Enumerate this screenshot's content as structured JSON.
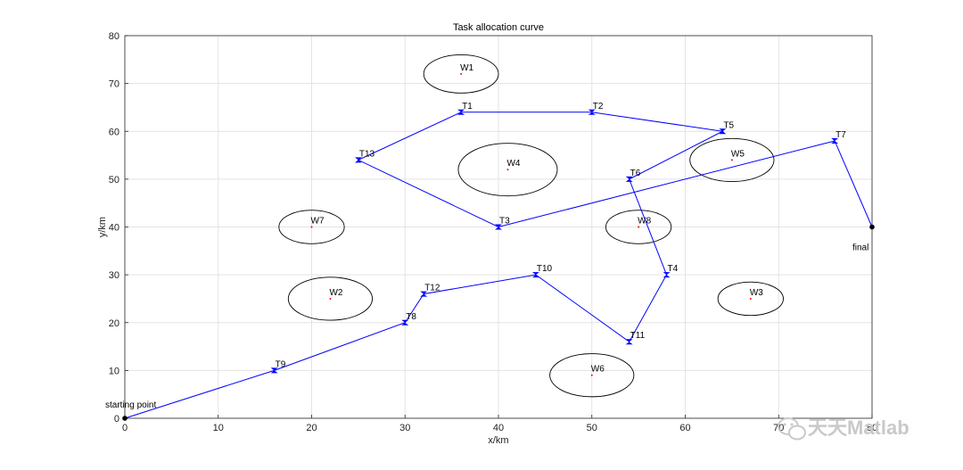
{
  "chart_data": {
    "type": "line",
    "title": "Task allocation curve",
    "xlabel": "x/km",
    "ylabel": "y/km",
    "xlim": [
      0,
      80
    ],
    "ylim": [
      0,
      80
    ],
    "xticks": [
      0,
      10,
      20,
      30,
      40,
      50,
      60,
      70,
      80
    ],
    "yticks": [
      0,
      10,
      20,
      30,
      40,
      50,
      60,
      70,
      80
    ],
    "grid": true,
    "line_color": "#0000ff",
    "path1": [
      {
        "label": "starting point",
        "x": 0,
        "y": 0
      },
      {
        "label": "T9",
        "x": 16,
        "y": 10
      },
      {
        "label": "T8",
        "x": 30,
        "y": 20
      },
      {
        "label": "T12",
        "x": 32,
        "y": 26
      },
      {
        "label": "T10",
        "x": 44,
        "y": 30
      },
      {
        "label": "T11",
        "x": 54,
        "y": 16
      },
      {
        "label": "T4",
        "x": 58,
        "y": 30
      },
      {
        "label": "T6",
        "x": 54,
        "y": 50
      },
      {
        "label": "T5",
        "x": 64,
        "y": 60
      },
      {
        "label": "T2",
        "x": 50,
        "y": 64
      },
      {
        "label": "T1",
        "x": 36,
        "y": 64
      },
      {
        "label": "T13",
        "x": 25,
        "y": 54
      },
      {
        "label": "T3",
        "x": 40,
        "y": 40
      },
      {
        "label": "T7",
        "x": 76,
        "y": 58
      },
      {
        "label": "final",
        "x": 80,
        "y": 40
      }
    ],
    "threats": [
      {
        "label": "W1",
        "x": 36,
        "y": 72,
        "rx": 4,
        "ry": 4
      },
      {
        "label": "W2",
        "x": 22,
        "y": 25,
        "rx": 4.5,
        "ry": 4.5
      },
      {
        "label": "W3",
        "x": 67,
        "y": 25,
        "rx": 3.5,
        "ry": 3.5
      },
      {
        "label": "W4",
        "x": 41,
        "y": 52,
        "rx": 5.3,
        "ry": 5.5
      },
      {
        "label": "W5",
        "x": 65,
        "y": 54,
        "rx": 4.5,
        "ry": 4.5
      },
      {
        "label": "W6",
        "x": 50,
        "y": 9,
        "rx": 4.5,
        "ry": 4.5
      },
      {
        "label": "W7",
        "x": 20,
        "y": 40,
        "rx": 3.5,
        "ry": 3.5
      },
      {
        "label": "W8",
        "x": 55,
        "y": 40,
        "rx": 3.5,
        "ry": 3.5
      }
    ],
    "watermark": "天天Matlab"
  }
}
